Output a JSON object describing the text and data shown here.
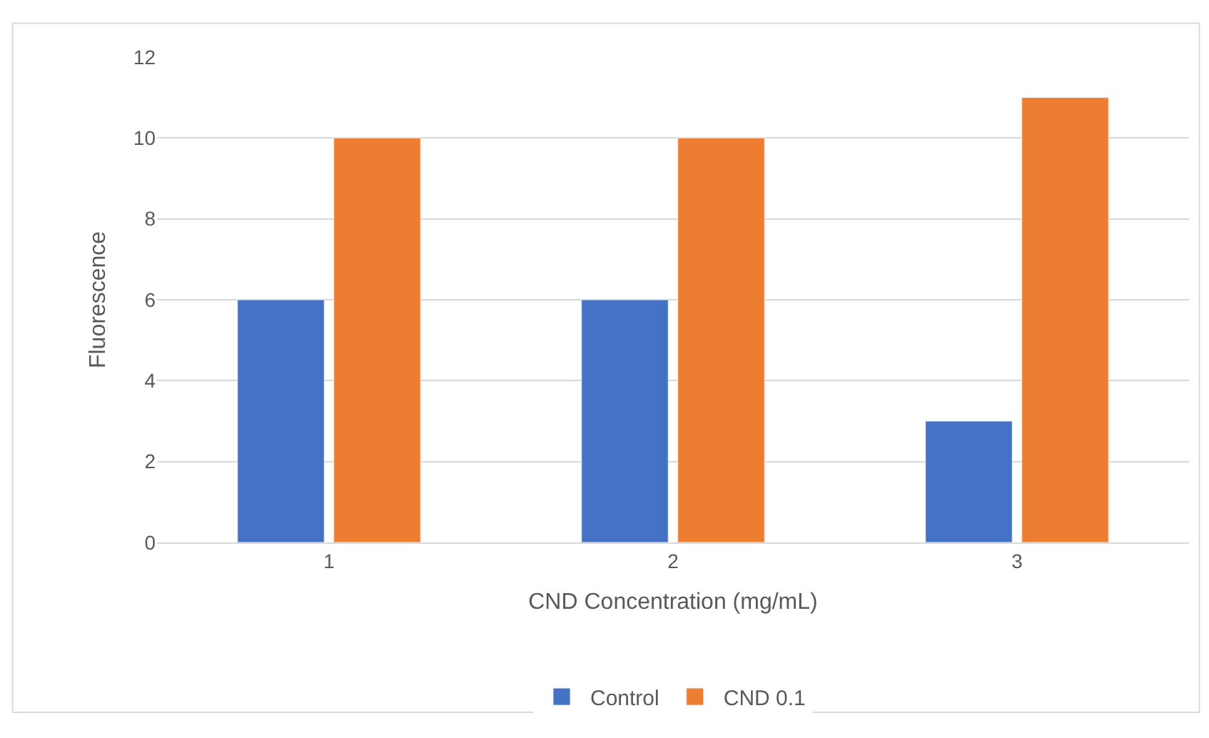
{
  "chart_data": {
    "type": "bar",
    "xlabel": "CND Concentration (mg/mL)",
    "ylabel": "Fluorescence",
    "categories": [
      "1",
      "2",
      "3"
    ],
    "series": [
      {
        "name": "Control",
        "color": "#4472c4",
        "values": [
          6,
          6,
          3
        ]
      },
      {
        "name": "CND 0.1",
        "color": "#ed7d31",
        "values": [
          10,
          10,
          11
        ]
      }
    ],
    "ylim": [
      0,
      12
    ],
    "yticks": [
      0,
      2,
      4,
      6,
      8,
      10,
      12
    ],
    "grid": "y",
    "legend": "bottom"
  }
}
